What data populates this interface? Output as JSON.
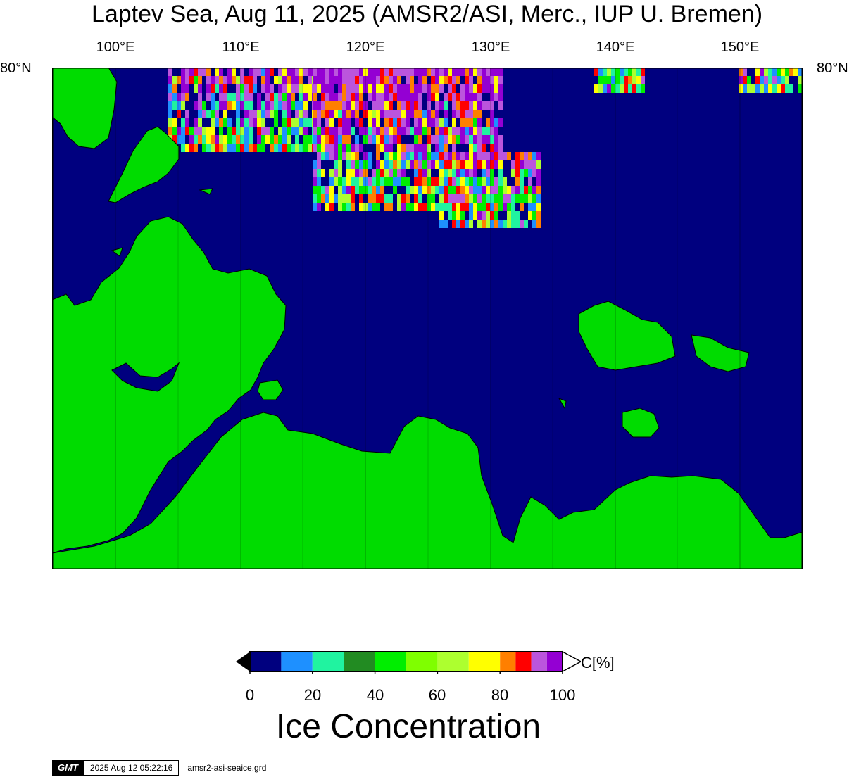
{
  "title": "Laptev Sea, Aug 11, 2025 (AMSR2/ASI, Merc., IUP U. Bremen)",
  "map": {
    "lon_labels": [
      "100°E",
      "110°E",
      "120°E",
      "130°E",
      "140°E",
      "150°E"
    ],
    "lat_labels": [
      "80°N",
      "80°N"
    ],
    "colors": {
      "ocean": "#00007f",
      "land": "#00dc00"
    }
  },
  "colorbar": {
    "unit": "C[%]",
    "ticks": [
      "0",
      "20",
      "40",
      "60",
      "80",
      "100"
    ],
    "colors": [
      "#00007f",
      "#1e90ff",
      "#20f3a0",
      "#228b22",
      "#00ee00",
      "#7fff00",
      "#adff2f",
      "#ffff00",
      "#ff7f00",
      "#ff0000",
      "#bb55dd",
      "#9400d3"
    ],
    "name": "Ice Concentration"
  },
  "footer": {
    "logo": "GMT",
    "timestamp": "2025 Aug 12 05:22:16",
    "grid_file": "amsr2-asi-seaice.grd"
  }
}
